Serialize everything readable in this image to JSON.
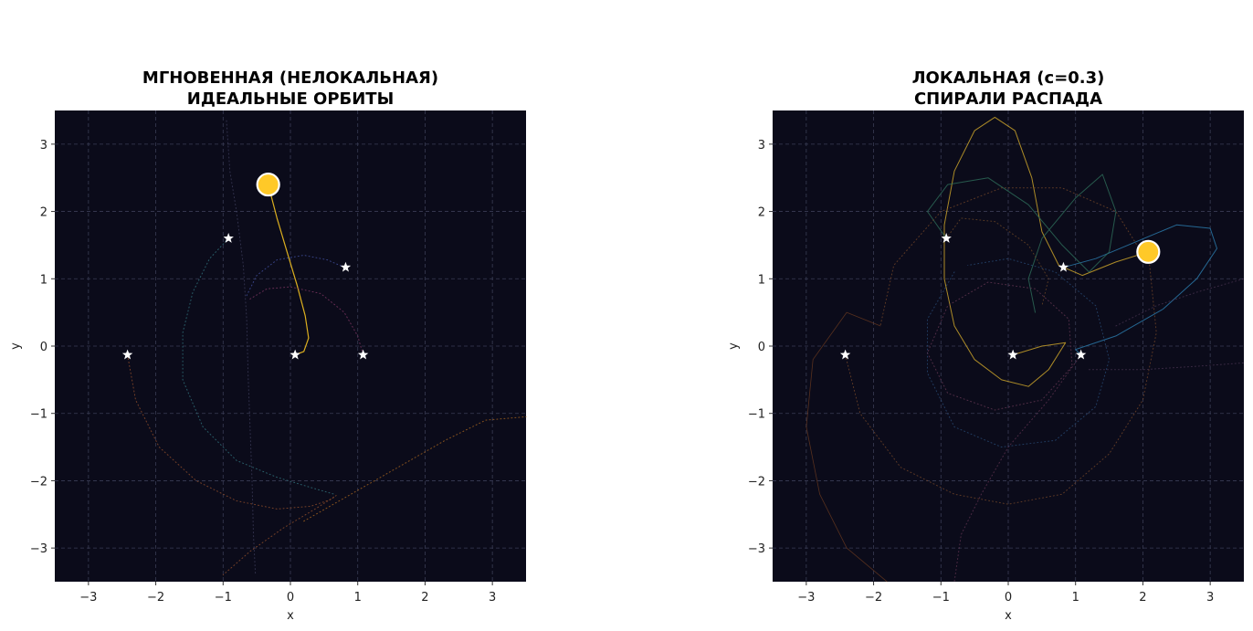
{
  "chart_data": [
    {
      "type": "scatter",
      "title": [
        "МГНОВЕННАЯ (НЕЛОКАЛЬНАЯ)",
        "ИДЕАЛЬНЫЕ ОРБИТЫ"
      ],
      "xlabel": "x",
      "ylabel": "y",
      "xlim": [
        -3.5,
        3.5
      ],
      "ylim": [
        -3.5,
        3.5
      ],
      "xticks": [
        -3,
        -2,
        -1,
        0,
        1,
        2,
        3
      ],
      "yticks": [
        -3,
        -2,
        -1,
        0,
        1,
        2,
        3
      ],
      "xtick_labels": [
        "−3",
        "−2",
        "−1",
        "0",
        "1",
        "2",
        "3"
      ],
      "ytick_labels": [
        "−3",
        "−2",
        "−1",
        "0",
        "1",
        "2",
        "3"
      ],
      "grid": true,
      "background": "#0b0b1a",
      "stars": [
        {
          "x": -0.92,
          "y": 1.6
        },
        {
          "x": 0.82,
          "y": 1.17
        },
        {
          "x": -2.42,
          "y": -0.13
        },
        {
          "x": 0.07,
          "y": -0.13
        },
        {
          "x": 1.08,
          "y": -0.13
        }
      ],
      "highlight_point": {
        "x": -0.33,
        "y": 2.4,
        "color": "#ffc928"
      },
      "trajectories": [
        {
          "color": "#e8b820",
          "style": "solid",
          "opacity": 0.95,
          "width": 1.2,
          "points": [
            [
              -0.33,
              2.4
            ],
            [
              -0.2,
              1.9
            ],
            [
              -0.05,
              1.4
            ],
            [
              0.1,
              0.9
            ],
            [
              0.22,
              0.45
            ],
            [
              0.27,
              0.12
            ],
            [
              0.2,
              -0.08
            ],
            [
              0.07,
              -0.13
            ]
          ]
        },
        {
          "color": "#2f6d78",
          "style": "dotted",
          "opacity": 0.85,
          "width": 1,
          "points": [
            [
              -0.92,
              1.6
            ],
            [
              -1.2,
              1.3
            ],
            [
              -1.45,
              0.8
            ],
            [
              -1.6,
              0.2
            ],
            [
              -1.6,
              -0.5
            ],
            [
              -1.3,
              -1.2
            ],
            [
              -0.8,
              -1.7
            ],
            [
              -0.2,
              -1.95
            ],
            [
              0.3,
              -2.1
            ],
            [
              0.65,
              -2.2
            ]
          ]
        },
        {
          "color": "#8a4a2a",
          "style": "dotted",
          "opacity": 0.85,
          "width": 1,
          "points": [
            [
              -2.42,
              -0.13
            ],
            [
              -2.3,
              -0.8
            ],
            [
              -1.95,
              -1.5
            ],
            [
              -1.4,
              -2.0
            ],
            [
              -0.8,
              -2.3
            ],
            [
              -0.2,
              -2.42
            ],
            [
              0.3,
              -2.38
            ],
            [
              0.6,
              -2.28
            ],
            [
              0.68,
              -2.22
            ],
            [
              0.4,
              -2.4
            ],
            [
              -0.1,
              -2.7
            ],
            [
              -0.6,
              -3.05
            ],
            [
              -1.0,
              -3.4
            ]
          ]
        },
        {
          "color": "#a8651e",
          "style": "dotted",
          "opacity": 0.8,
          "width": 1,
          "points": [
            [
              0.2,
              -2.6
            ],
            [
              0.9,
              -2.2
            ],
            [
              1.6,
              -1.8
            ],
            [
              2.3,
              -1.4
            ],
            [
              2.9,
              -1.1
            ],
            [
              3.5,
              -1.05
            ]
          ]
        },
        {
          "color": "#3f4d9a",
          "style": "dotted",
          "opacity": 0.85,
          "width": 1,
          "points": [
            [
              -0.65,
              0.75
            ],
            [
              -0.5,
              1.05
            ],
            [
              -0.2,
              1.28
            ],
            [
              0.2,
              1.35
            ],
            [
              0.55,
              1.28
            ],
            [
              0.8,
              1.17
            ]
          ]
        },
        {
          "color": "#7a3560",
          "style": "dotted",
          "opacity": 0.85,
          "width": 1,
          "points": [
            [
              -0.6,
              0.7
            ],
            [
              -0.35,
              0.85
            ],
            [
              0.0,
              0.88
            ],
            [
              0.45,
              0.78
            ],
            [
              0.8,
              0.5
            ],
            [
              1.0,
              0.15
            ],
            [
              1.08,
              -0.13
            ]
          ]
        },
        {
          "color": "#4d4d70",
          "style": "dotted",
          "opacity": 0.6,
          "width": 1,
          "points": [
            [
              -0.95,
              3.35
            ],
            [
              -0.9,
              2.6
            ],
            [
              -0.8,
              2.0
            ],
            [
              -0.7,
              1.2
            ],
            [
              -0.65,
              0.4
            ],
            [
              -0.63,
              -0.4
            ],
            [
              -0.6,
              -1.2
            ],
            [
              -0.57,
              -2.0
            ],
            [
              -0.55,
              -2.8
            ],
            [
              -0.52,
              -3.4
            ]
          ]
        }
      ]
    },
    {
      "type": "scatter",
      "title": [
        "ЛОКАЛЬНАЯ (c=0.3)",
        "СПИРАЛИ РАСПАДА"
      ],
      "xlabel": "x",
      "ylabel": "y",
      "xlim": [
        -3.5,
        3.5
      ],
      "ylim": [
        -3.5,
        3.5
      ],
      "xticks": [
        -3,
        -2,
        -1,
        0,
        1,
        2,
        3
      ],
      "yticks": [
        -3,
        -2,
        -1,
        0,
        1,
        2,
        3
      ],
      "xtick_labels": [
        "−3",
        "−2",
        "−1",
        "0",
        "1",
        "2",
        "3"
      ],
      "ytick_labels": [
        "−3",
        "−2",
        "−1",
        "0",
        "1",
        "2",
        "3"
      ],
      "grid": true,
      "background": "#0b0b1a",
      "stars": [
        {
          "x": -0.92,
          "y": 1.6
        },
        {
          "x": 0.82,
          "y": 1.17
        },
        {
          "x": -2.42,
          "y": -0.13
        },
        {
          "x": 0.07,
          "y": -0.13
        },
        {
          "x": 1.08,
          "y": -0.13
        }
      ],
      "highlight_point": {
        "x": 2.08,
        "y": 1.4,
        "color": "#ffc928"
      },
      "trajectories": [
        {
          "color": "#c9a22a",
          "style": "solid",
          "opacity": 0.85,
          "width": 1,
          "points": [
            [
              0.07,
              -0.13
            ],
            [
              0.5,
              0.0
            ],
            [
              0.85,
              0.05
            ],
            [
              0.6,
              -0.35
            ],
            [
              0.3,
              -0.6
            ],
            [
              -0.1,
              -0.5
            ],
            [
              -0.5,
              -0.2
            ],
            [
              -0.8,
              0.3
            ],
            [
              -0.95,
              1.0
            ],
            [
              -0.95,
              1.8
            ],
            [
              -0.8,
              2.6
            ],
            [
              -0.5,
              3.2
            ],
            [
              -0.2,
              3.4
            ],
            [
              0.1,
              3.2
            ],
            [
              0.35,
              2.5
            ],
            [
              0.5,
              1.7
            ],
            [
              0.75,
              1.2
            ],
            [
              1.1,
              1.05
            ],
            [
              1.6,
              1.25
            ],
            [
              2.08,
              1.4
            ]
          ]
        },
        {
          "color": "#2a78a8",
          "style": "solid",
          "opacity": 0.85,
          "width": 1,
          "points": [
            [
              0.82,
              1.17
            ],
            [
              1.3,
              1.3
            ],
            [
              1.9,
              1.55
            ],
            [
              2.5,
              1.8
            ],
            [
              3.0,
              1.75
            ],
            [
              3.1,
              1.45
            ],
            [
              2.8,
              1.0
            ],
            [
              2.3,
              0.55
            ],
            [
              1.6,
              0.15
            ],
            [
              1.0,
              -0.05
            ],
            [
              1.08,
              -0.13
            ]
          ]
        },
        {
          "color": "#2e6e5a",
          "style": "solid",
          "opacity": 0.8,
          "width": 1,
          "points": [
            [
              -0.92,
              1.6
            ],
            [
              -1.2,
              2.0
            ],
            [
              -0.9,
              2.4
            ],
            [
              -0.3,
              2.5
            ],
            [
              0.3,
              2.1
            ],
            [
              0.8,
              1.5
            ],
            [
              1.2,
              1.1
            ],
            [
              1.5,
              1.4
            ],
            [
              1.6,
              2.0
            ],
            [
              1.4,
              2.55
            ],
            [
              1.0,
              2.2
            ],
            [
              0.5,
              1.6
            ],
            [
              0.3,
              1.0
            ],
            [
              0.4,
              0.5
            ]
          ]
        },
        {
          "color": "#7a4a2a",
          "style": "dotted",
          "opacity": 0.75,
          "width": 1,
          "points": [
            [
              -2.42,
              -0.13
            ],
            [
              -2.2,
              -1.0
            ],
            [
              -1.6,
              -1.8
            ],
            [
              -0.8,
              -2.2
            ],
            [
              0.0,
              -2.35
            ],
            [
              0.8,
              -2.2
            ],
            [
              1.5,
              -1.6
            ],
            [
              2.0,
              -0.8
            ],
            [
              2.2,
              0.2
            ],
            [
              2.1,
              1.2
            ],
            [
              1.6,
              2.0
            ],
            [
              0.8,
              2.35
            ],
            [
              -0.1,
              2.35
            ],
            [
              -1.0,
              2.0
            ],
            [
              -1.7,
              1.2
            ],
            [
              -1.9,
              0.3
            ]
          ]
        },
        {
          "color": "#8a4a22",
          "style": "solid",
          "opacity": 0.6,
          "width": 0.8,
          "points": [
            [
              -1.9,
              0.3
            ],
            [
              -2.4,
              0.5
            ],
            [
              -2.9,
              -0.2
            ],
            [
              -3.0,
              -1.2
            ],
            [
              -2.8,
              -2.2
            ],
            [
              -2.4,
              -3.0
            ],
            [
              -1.8,
              -3.5
            ]
          ]
        },
        {
          "color": "#2a4e7a",
          "style": "dotted",
          "opacity": 0.75,
          "width": 1,
          "points": [
            [
              -0.8,
              1.1
            ],
            [
              -1.2,
              0.4
            ],
            [
              -1.2,
              -0.4
            ],
            [
              -0.8,
              -1.2
            ],
            [
              -0.1,
              -1.5
            ],
            [
              0.7,
              -1.4
            ],
            [
              1.3,
              -0.9
            ],
            [
              1.5,
              -0.2
            ],
            [
              1.3,
              0.6
            ],
            [
              0.7,
              1.1
            ],
            [
              0.0,
              1.3
            ],
            [
              -0.6,
              1.2
            ]
          ]
        },
        {
          "color": "#6a3a55",
          "style": "dotted",
          "opacity": 0.75,
          "width": 1,
          "points": [
            [
              -1.2,
              -0.1
            ],
            [
              -0.9,
              -0.7
            ],
            [
              -0.2,
              -0.95
            ],
            [
              0.5,
              -0.8
            ],
            [
              0.95,
              -0.3
            ],
            [
              0.9,
              0.4
            ],
            [
              0.4,
              0.85
            ],
            [
              -0.3,
              0.95
            ],
            [
              -0.9,
              0.6
            ],
            [
              -1.2,
              -0.1
            ]
          ]
        },
        {
          "color": "#7a4060",
          "style": "dotted",
          "opacity": 0.6,
          "width": 1,
          "points": [
            [
              1.08,
              -0.13
            ],
            [
              0.6,
              -0.8
            ],
            [
              0.0,
              -1.5
            ],
            [
              -0.4,
              -2.2
            ],
            [
              -0.7,
              -2.8
            ],
            [
              -0.8,
              -3.5
            ]
          ]
        },
        {
          "color": "#5a4060",
          "style": "dotted",
          "opacity": 0.6,
          "width": 1,
          "points": [
            [
              1.2,
              -0.35
            ],
            [
              2.0,
              -0.35
            ],
            [
              2.8,
              -0.3
            ],
            [
              3.5,
              -0.25
            ]
          ]
        },
        {
          "color": "#5a4060",
          "style": "dotted",
          "opacity": 0.6,
          "width": 1,
          "points": [
            [
              1.6,
              0.3
            ],
            [
              2.2,
              0.6
            ],
            [
              2.8,
              0.8
            ],
            [
              3.5,
              1.0
            ]
          ]
        },
        {
          "color": "#8a5a2a",
          "style": "dotted",
          "opacity": 0.6,
          "width": 1,
          "points": [
            [
              -0.92,
              1.6
            ],
            [
              -0.7,
              1.9
            ],
            [
              -0.2,
              1.85
            ],
            [
              0.3,
              1.5
            ],
            [
              0.6,
              1.0
            ],
            [
              0.5,
              0.6
            ]
          ]
        }
      ]
    }
  ]
}
